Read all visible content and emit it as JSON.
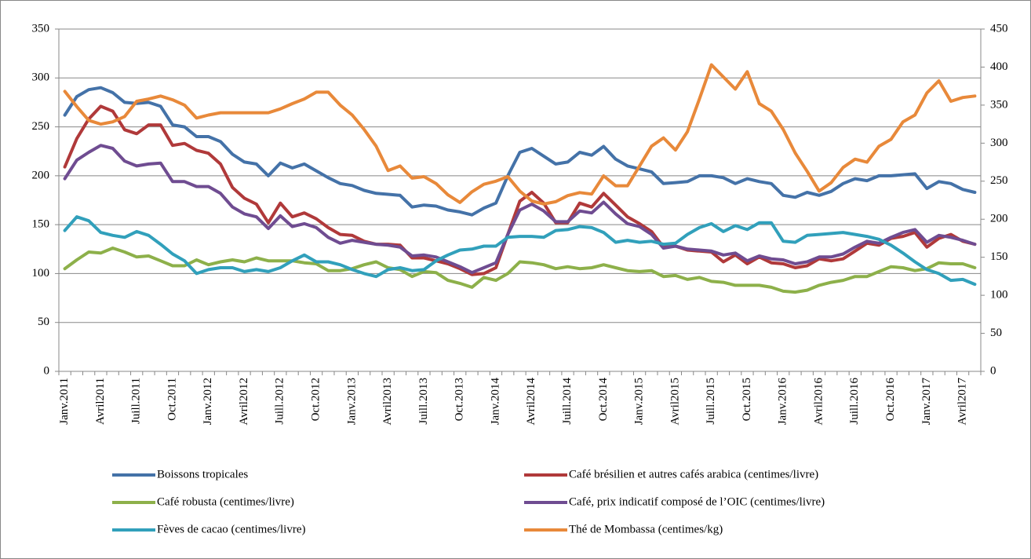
{
  "chart_data": {
    "type": "line",
    "categories": [
      "Janv.2011",
      null,
      null,
      "Avril2011",
      null,
      null,
      "Juill.2011",
      null,
      null,
      "Oct.2011",
      null,
      null,
      "Janv.2012",
      null,
      null,
      "Avril2012",
      null,
      null,
      "Juill.2012",
      null,
      null,
      "Oct.2012",
      null,
      null,
      "Janv.2013",
      null,
      null,
      "Avril2013",
      null,
      null,
      "Juill.2013",
      null,
      null,
      "Oct.2013",
      null,
      null,
      "Janv.2014",
      null,
      null,
      "Avril2014",
      null,
      null,
      "Juill.2014",
      null,
      null,
      "Oct.2014",
      null,
      null,
      "Janv.2015",
      null,
      null,
      "Avril2015",
      null,
      null,
      "Juill.2015",
      null,
      null,
      "Oct.2015",
      null,
      null,
      "Janv.2016",
      null,
      null,
      "Avril2016",
      null,
      null,
      "Juill.2016",
      null,
      null,
      "Oct.2016",
      null,
      null,
      "Janv.2017",
      null,
      null,
      "Avril2017",
      null
    ],
    "series": [
      {
        "name": "Boissons tropicales",
        "color": "#4472a8",
        "values": [
          262,
          281,
          288,
          290,
          285,
          275,
          274,
          275,
          271,
          252,
          250,
          240,
          240,
          235,
          222,
          214,
          212,
          200,
          213,
          208,
          212,
          205,
          198,
          192,
          190,
          185,
          182,
          181,
          180,
          168,
          170,
          169,
          165,
          163,
          160,
          167,
          172,
          200,
          224,
          228,
          220,
          212,
          214,
          224,
          221,
          230,
          217,
          210,
          207,
          204,
          192,
          193,
          194,
          200,
          200,
          198,
          192,
          197,
          194,
          192,
          180,
          178,
          183,
          180,
          184,
          192,
          197,
          195,
          200,
          200,
          201,
          202,
          187,
          194,
          192,
          186,
          183
        ]
      },
      {
        "name": "Café brésilien et autres cafés arabica (centimes/livre)",
        "color": "#b0393a",
        "values": [
          209,
          238,
          258,
          271,
          266,
          247,
          243,
          252,
          252,
          231,
          233,
          226,
          223,
          212,
          188,
          177,
          171,
          152,
          172,
          158,
          162,
          156,
          147,
          140,
          139,
          133,
          130,
          130,
          129,
          116,
          116,
          113,
          110,
          105,
          99,
          100,
          106,
          140,
          174,
          183,
          172,
          152,
          152,
          172,
          168,
          182,
          170,
          158,
          151,
          143,
          127,
          128,
          124,
          123,
          122,
          112,
          119,
          110,
          117,
          111,
          110,
          106,
          108,
          115,
          113,
          115,
          123,
          131,
          129,
          136,
          138,
          142,
          127,
          136,
          140,
          133,
          130
        ]
      },
      {
        "name": "Café robusta (centimes/livre)",
        "color": "#8db04a",
        "values": [
          105,
          114,
          122,
          121,
          126,
          122,
          117,
          118,
          113,
          108,
          108,
          114,
          109,
          112,
          114,
          112,
          116,
          113,
          113,
          113,
          111,
          110,
          103,
          103,
          105,
          109,
          112,
          106,
          104,
          97,
          102,
          101,
          93,
          90,
          86,
          96,
          93,
          100,
          112,
          111,
          109,
          105,
          107,
          105,
          106,
          109,
          106,
          103,
          102,
          103,
          97,
          98,
          94,
          96,
          92,
          91,
          88,
          88,
          88,
          86,
          82,
          81,
          83,
          88,
          91,
          93,
          97,
          97,
          102,
          107,
          106,
          103,
          105,
          111,
          110,
          110,
          106
        ]
      },
      {
        "name": "Café, prix indicatif composé de l’OIC (centimes/livre)",
        "color": "#6f4c91",
        "values": [
          197,
          216,
          224,
          231,
          228,
          215,
          210,
          212,
          213,
          194,
          194,
          189,
          189,
          182,
          168,
          161,
          158,
          146,
          159,
          148,
          151,
          147,
          137,
          131,
          134,
          132,
          130,
          129,
          127,
          118,
          119,
          117,
          112,
          107,
          101,
          106,
          111,
          140,
          165,
          171,
          164,
          153,
          153,
          164,
          162,
          173,
          161,
          151,
          148,
          140,
          126,
          128,
          125,
          124,
          123,
          119,
          121,
          113,
          118,
          115,
          114,
          110,
          112,
          117,
          117,
          120,
          127,
          133,
          131,
          137,
          142,
          145,
          132,
          139,
          137,
          134,
          130
        ]
      },
      {
        "name": "Fèves de cacao (centimes/livre)",
        "color": "#31a0bb",
        "values": [
          144,
          158,
          154,
          142,
          139,
          137,
          143,
          139,
          130,
          120,
          113,
          100,
          104,
          106,
          106,
          102,
          104,
          102,
          106,
          113,
          119,
          112,
          112,
          109,
          104,
          100,
          97,
          104,
          106,
          103,
          104,
          113,
          119,
          124,
          125,
          128,
          128,
          137,
          138,
          138,
          137,
          144,
          145,
          148,
          147,
          142,
          132,
          134,
          132,
          133,
          130,
          131,
          140,
          147,
          151,
          143,
          149,
          145,
          152,
          152,
          133,
          132,
          139,
          140,
          141,
          142,
          140,
          138,
          135,
          129,
          121,
          112,
          104,
          100,
          93,
          94,
          89
        ]
      },
      {
        "name": "Thé de Mombassa (centimes/kg)",
        "color": "#e8893a",
        "axis": "y2",
        "values": [
          368,
          348,
          330,
          325,
          328,
          335,
          355,
          358,
          362,
          357,
          350,
          333,
          337,
          340,
          340,
          340,
          340,
          340,
          345,
          352,
          358,
          367,
          367,
          350,
          337,
          318,
          296,
          264,
          270,
          254,
          256,
          247,
          232,
          222,
          236,
          246,
          250,
          256,
          237,
          224,
          220,
          223,
          231,
          235,
          233,
          257,
          244,
          244,
          270,
          296,
          307,
          291,
          315,
          358,
          403,
          387,
          371,
          394,
          352,
          342,
          318,
          287,
          263,
          237,
          248,
          268,
          279,
          275,
          296,
          305,
          328,
          337,
          366,
          382,
          355,
          360,
          362
        ]
      }
    ],
    "ylim": [
      0,
      350
    ],
    "yticks": [
      0,
      50,
      100,
      150,
      200,
      250,
      300,
      350
    ],
    "y2lim": [
      0,
      450
    ],
    "y2ticks": [
      0,
      50,
      100,
      150,
      200,
      250,
      300,
      350,
      400,
      450
    ],
    "grid": true
  }
}
